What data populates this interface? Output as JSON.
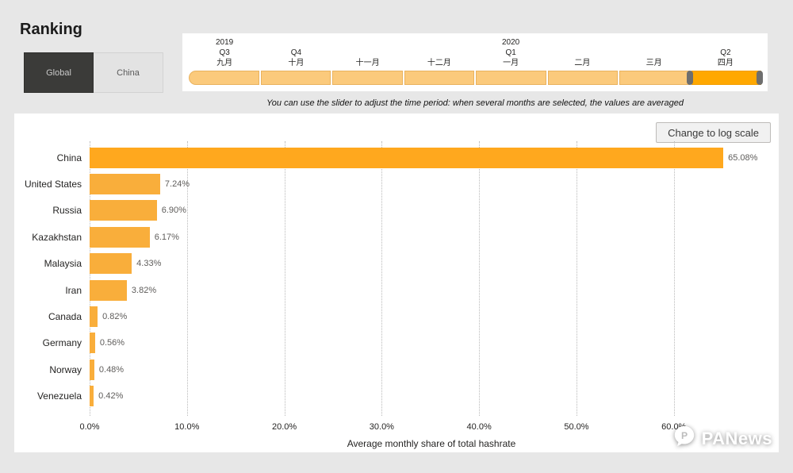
{
  "page": {
    "title": "Ranking"
  },
  "view_toggle": {
    "global": "Global",
    "china": "China",
    "selected": "Global"
  },
  "timeline": {
    "note": "You can use the slider to adjust the time period: when several months are selected, the values are averaged",
    "segments": [
      {
        "year": "2019",
        "quarter": "Q3",
        "month": "九月",
        "selected": false
      },
      {
        "quarter": "Q4",
        "month": "十月",
        "selected": false
      },
      {
        "month": "十一月",
        "selected": false
      },
      {
        "month": "十二月",
        "selected": false
      },
      {
        "year": "2020",
        "quarter": "Q1",
        "month": "一月",
        "selected": false
      },
      {
        "month": "二月",
        "selected": false
      },
      {
        "month": "三月",
        "selected": false
      },
      {
        "quarter": "Q2",
        "month": "四月",
        "selected": true
      }
    ],
    "track_color": "#FBCA7C",
    "selected_color": "#FFA800",
    "handle_color": "#6E6E6E"
  },
  "chart": {
    "log_scale_button": "Change to log scale"
  },
  "chart_data": {
    "type": "bar",
    "orientation": "horizontal",
    "title": "",
    "categories": [
      "China",
      "United States",
      "Russia",
      "Kazakhstan",
      "Malaysia",
      "Iran",
      "Canada",
      "Germany",
      "Norway",
      "Venezuela"
    ],
    "values": [
      65.08,
      7.24,
      6.9,
      6.17,
      4.33,
      3.82,
      0.82,
      0.56,
      0.48,
      0.42
    ],
    "value_labels": [
      "65.08%",
      "7.24%",
      "6.90%",
      "6.17%",
      "4.33%",
      "3.82%",
      "0.82%",
      "0.56%",
      "0.48%",
      "0.42%"
    ],
    "xlabel": "Average monthly share of total hashrate",
    "xticks": [
      0,
      10,
      20,
      30,
      40,
      50,
      60
    ],
    "xtick_labels": [
      "0.0%",
      "10.0%",
      "20.0%",
      "30.0%",
      "40.0%",
      "50.0%",
      "60.0%"
    ],
    "xmax": 70.2,
    "grid": "dotted",
    "bar_color": "#F9AE3B",
    "highlight_bar_color": "#FFA81E",
    "legend": "none"
  },
  "watermark": {
    "text": "PANews"
  }
}
